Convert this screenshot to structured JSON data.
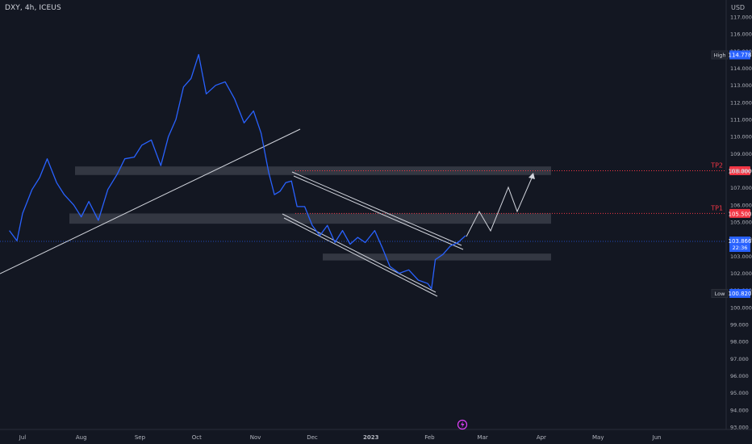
{
  "header": {
    "symbol_label": "DXY, 4h, ICEUS",
    "currency": "USD"
  },
  "chart_data": {
    "type": "line",
    "x_ticks": [
      "Jul",
      "Aug",
      "Sep",
      "Oct",
      "Nov",
      "Dec",
      "2023",
      "Feb",
      "Mar",
      "Apr",
      "May",
      "Jun"
    ],
    "y_ticks": [
      "117.000",
      "116.000",
      "115.000",
      "114.000",
      "113.000",
      "112.000",
      "111.000",
      "110.000",
      "109.000",
      "108.000",
      "107.000",
      "106.000",
      "105.000",
      "104.000",
      "103.000",
      "102.000",
      "101.000",
      "100.000",
      "99.000",
      "98.000",
      "97.000",
      "96.000",
      "95.000",
      "94.000",
      "93.000"
    ],
    "ylim": [
      92.7,
      117.7
    ],
    "series": [
      {
        "color": "#2962ff",
        "x": [
          "2022-06-24",
          "2022-06-28",
          "2022-07-01",
          "2022-07-06",
          "2022-07-10",
          "2022-07-14",
          "2022-07-19",
          "2022-07-23",
          "2022-07-28",
          "2022-08-01",
          "2022-08-05",
          "2022-08-10",
          "2022-08-15",
          "2022-08-20",
          "2022-08-24",
          "2022-08-29",
          "2022-09-02",
          "2022-09-07",
          "2022-09-12",
          "2022-09-16",
          "2022-09-20",
          "2022-09-24",
          "2022-09-28",
          "2022-10-02",
          "2022-10-06",
          "2022-10-11",
          "2022-10-16",
          "2022-10-21",
          "2022-10-26",
          "2022-10-31",
          "2022-11-04",
          "2022-11-08",
          "2022-11-11",
          "2022-11-14",
          "2022-11-17",
          "2022-11-20",
          "2022-11-23",
          "2022-11-27",
          "2022-12-01",
          "2022-12-05",
          "2022-12-09",
          "2022-12-13",
          "2022-12-17",
          "2022-12-21",
          "2022-12-25",
          "2022-12-29",
          "2023-01-03",
          "2023-01-07",
          "2023-01-11",
          "2023-01-16",
          "2023-01-21",
          "2023-01-26",
          "2023-01-31",
          "2023-02-02",
          "2023-02-04",
          "2023-02-08",
          "2023-02-12",
          "2023-02-16",
          "2023-02-20"
        ],
        "y": [
          104.5,
          103.9,
          105.5,
          106.9,
          107.6,
          108.7,
          107.3,
          106.6,
          106.0,
          105.3,
          106.2,
          105.1,
          106.9,
          107.8,
          108.7,
          108.8,
          109.5,
          109.8,
          108.3,
          110.0,
          111.0,
          112.9,
          113.4,
          114.8,
          112.5,
          113.0,
          113.2,
          112.2,
          110.8,
          111.5,
          110.2,
          107.9,
          106.6,
          106.8,
          107.3,
          107.4,
          105.9,
          105.9,
          104.8,
          104.2,
          104.8,
          103.8,
          104.5,
          103.7,
          104.1,
          103.8,
          104.5,
          103.5,
          102.4,
          102.0,
          102.2,
          101.6,
          101.4,
          101.1,
          102.8,
          103.1,
          103.6,
          103.8,
          104.2
        ]
      }
    ],
    "levels": [
      {
        "name": "TP2",
        "value": "108.000",
        "color": "#f23645"
      },
      {
        "name": "TP1",
        "value": "105.500",
        "color": "#f23645"
      }
    ],
    "zones": [
      {
        "from": 107.75,
        "to": 108.25
      },
      {
        "from": 104.9,
        "to": 105.5
      },
      {
        "from": 102.75,
        "to": 103.15
      }
    ],
    "badges": [
      {
        "name": "High",
        "value": "114.778",
        "color": "#2962ff"
      },
      {
        "name": "Low",
        "value": "100.820",
        "color": "#2962ff"
      }
    ],
    "last_price": {
      "value": "103.866",
      "countdown": "22:36",
      "color": "#2962ff"
    }
  }
}
